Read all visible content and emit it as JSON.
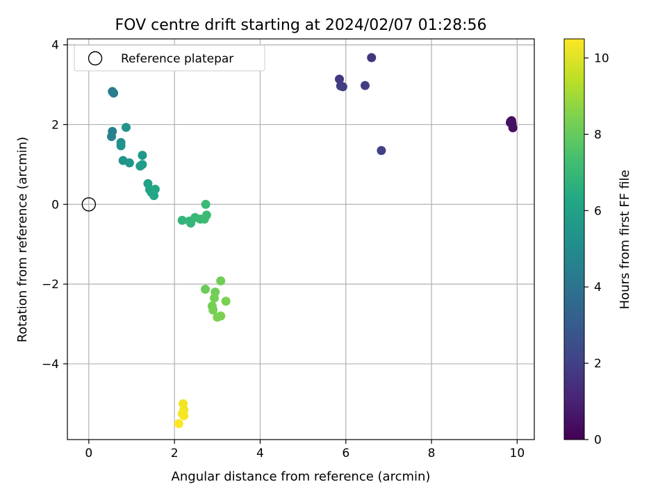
{
  "chart_data": {
    "type": "scatter",
    "title": "FOV centre drift starting at 2024/02/07 01:28:56",
    "xlabel": "Angular distance from reference (arcmin)",
    "ylabel": "Rotation from reference (arcmin)",
    "xlim": [
      -0.5,
      10.4
    ],
    "ylim": [
      -5.9,
      4.15
    ],
    "xticks": [
      0,
      2,
      4,
      6,
      8,
      10
    ],
    "xtick_labels": [
      "0",
      "2",
      "4",
      "6",
      "8",
      "10"
    ],
    "yticks": [
      4,
      2,
      0,
      -2,
      -4
    ],
    "ytick_labels": [
      "4",
      "2",
      "0",
      "−2",
      "−4"
    ],
    "grid": true,
    "legend": {
      "placement": "upper-left",
      "entries": [
        "Reference platepar"
      ]
    },
    "reference_point": {
      "x": 0,
      "y": 0
    },
    "colorbar": {
      "label": "Hours from first FF file",
      "colormap": "viridis",
      "range": [
        0,
        10.5
      ],
      "ticks": [
        0,
        2,
        4,
        6,
        8,
        10
      ],
      "tick_labels": [
        "0",
        "2",
        "4",
        "6",
        "8",
        "10"
      ]
    },
    "points": [
      {
        "x": 9.85,
        "y": 2.08,
        "h": 0.1
      },
      {
        "x": 9.88,
        "y": 2.03,
        "h": 0.2
      },
      {
        "x": 9.87,
        "y": 2.1,
        "h": 0.3
      },
      {
        "x": 9.9,
        "y": 1.92,
        "h": 0.4
      },
      {
        "x": 9.84,
        "y": 2.05,
        "h": 0.5
      },
      {
        "x": 6.6,
        "y": 3.68,
        "h": 1.6
      },
      {
        "x": 5.85,
        "y": 3.14,
        "h": 1.7
      },
      {
        "x": 5.88,
        "y": 2.97,
        "h": 1.8
      },
      {
        "x": 5.93,
        "y": 2.95,
        "h": 1.9
      },
      {
        "x": 6.45,
        "y": 2.98,
        "h": 1.9
      },
      {
        "x": 6.83,
        "y": 1.35,
        "h": 2.0
      },
      {
        "x": 0.55,
        "y": 2.83,
        "h": 4.3
      },
      {
        "x": 0.58,
        "y": 2.79,
        "h": 4.4
      },
      {
        "x": 0.55,
        "y": 1.83,
        "h": 4.5
      },
      {
        "x": 0.53,
        "y": 1.7,
        "h": 4.6
      },
      {
        "x": 0.75,
        "y": 1.55,
        "h": 5.2
      },
      {
        "x": 0.75,
        "y": 1.47,
        "h": 5.3
      },
      {
        "x": 0.87,
        "y": 1.93,
        "h": 5.4
      },
      {
        "x": 0.8,
        "y": 1.1,
        "h": 5.4
      },
      {
        "x": 0.95,
        "y": 1.04,
        "h": 5.5
      },
      {
        "x": 1.25,
        "y": 1.23,
        "h": 5.6
      },
      {
        "x": 1.2,
        "y": 0.96,
        "h": 5.7
      },
      {
        "x": 1.25,
        "y": 1.0,
        "h": 5.8
      },
      {
        "x": 1.38,
        "y": 0.52,
        "h": 6.0
      },
      {
        "x": 1.42,
        "y": 0.37,
        "h": 6.1
      },
      {
        "x": 1.46,
        "y": 0.3,
        "h": 6.1
      },
      {
        "x": 1.52,
        "y": 0.22,
        "h": 6.2
      },
      {
        "x": 1.55,
        "y": 0.38,
        "h": 6.2
      },
      {
        "x": 2.18,
        "y": -0.4,
        "h": 6.8
      },
      {
        "x": 2.35,
        "y": -0.42,
        "h": 6.8
      },
      {
        "x": 2.38,
        "y": -0.47,
        "h": 6.9
      },
      {
        "x": 2.48,
        "y": -0.33,
        "h": 7.0
      },
      {
        "x": 2.6,
        "y": -0.37,
        "h": 7.0
      },
      {
        "x": 2.7,
        "y": -0.37,
        "h": 7.1
      },
      {
        "x": 2.73,
        "y": 0.0,
        "h": 7.1
      },
      {
        "x": 2.75,
        "y": -0.27,
        "h": 7.1
      },
      {
        "x": 2.72,
        "y": -2.13,
        "h": 8.1
      },
      {
        "x": 3.08,
        "y": -1.92,
        "h": 8.2
      },
      {
        "x": 2.95,
        "y": -2.2,
        "h": 8.2
      },
      {
        "x": 2.93,
        "y": -2.35,
        "h": 8.3
      },
      {
        "x": 2.88,
        "y": -2.55,
        "h": 8.3
      },
      {
        "x": 2.9,
        "y": -2.65,
        "h": 8.3
      },
      {
        "x": 3.2,
        "y": -2.43,
        "h": 8.4
      },
      {
        "x": 3.0,
        "y": -2.83,
        "h": 8.4
      },
      {
        "x": 3.08,
        "y": -2.8,
        "h": 8.4
      },
      {
        "x": 2.2,
        "y": -5.0,
        "h": 10.3
      },
      {
        "x": 2.22,
        "y": -5.15,
        "h": 10.3
      },
      {
        "x": 2.18,
        "y": -5.25,
        "h": 10.4
      },
      {
        "x": 2.22,
        "y": -5.3,
        "h": 10.4
      },
      {
        "x": 2.1,
        "y": -5.5,
        "h": 10.5
      }
    ]
  }
}
